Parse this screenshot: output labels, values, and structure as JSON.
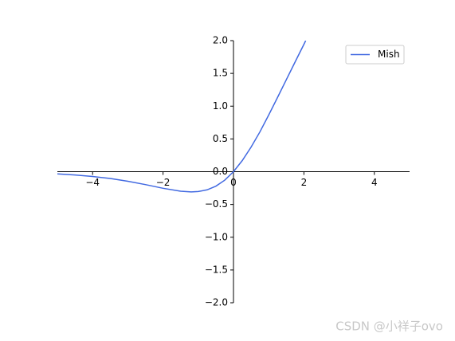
{
  "chart_data": {
    "type": "line",
    "x": [
      -5,
      -4.5,
      -4,
      -3.5,
      -3,
      -2.5,
      -2,
      -1.5,
      -1.2,
      -1,
      -0.75,
      -0.5,
      -0.25,
      0,
      0.25,
      0.5,
      0.75,
      1,
      1.25,
      1.5,
      1.75,
      2,
      2.05
    ],
    "series": [
      {
        "name": "Mish",
        "color": "#4169e1",
        "values": [
          -0.034,
          -0.05,
          -0.073,
          -0.104,
          -0.146,
          -0.197,
          -0.253,
          -0.298,
          -0.309,
          -0.303,
          -0.277,
          -0.221,
          -0.13,
          0,
          0.17,
          0.375,
          0.607,
          0.865,
          1.132,
          1.404,
          1.675,
          1.944,
          2.0
        ]
      }
    ],
    "xlim": [
      -5,
      5
    ],
    "ylim": [
      -2,
      2
    ],
    "xticks": [
      {
        "value": -4,
        "label": "−4"
      },
      {
        "value": -2,
        "label": "−2"
      },
      0,
      2,
      4
    ],
    "yticks": [
      {
        "value": -2,
        "label": "−2.0"
      },
      {
        "value": -1.5,
        "label": "−1.5"
      },
      {
        "value": -1,
        "label": "−1.0"
      },
      {
        "value": -0.5,
        "label": "−0.5"
      },
      {
        "value": 0,
        "label": "0.0"
      },
      {
        "value": 0.5,
        "label": "0.5"
      },
      {
        "value": 1,
        "label": "1.0"
      },
      {
        "value": 1.5,
        "label": "1.5"
      },
      {
        "value": 2,
        "label": "2.0"
      }
    ],
    "legend": "upper right",
    "watermark": "CSDN @小祥子ovo"
  }
}
